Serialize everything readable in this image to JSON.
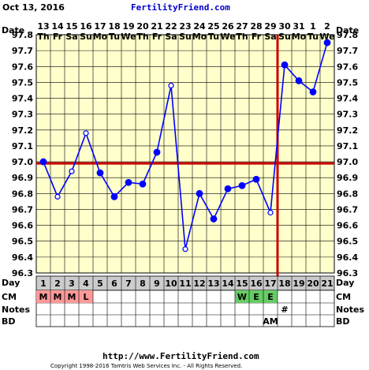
{
  "header": {
    "date_title": "Oct 13, 2016",
    "brand": "FertilityFriend.com"
  },
  "row_labels": {
    "date": "Date",
    "day": "Day",
    "cm": "CM",
    "notes": "Notes",
    "bd": "BD"
  },
  "footer": {
    "url": "http://www.FertilityFriend.com",
    "copyright": "Copyright 1998-2016 Tamtris Web Services Inc. - All Rights Reserved."
  },
  "colors": {
    "background": "#ffffcc",
    "grid": "#000000",
    "series": "#0000ff",
    "coverline": "#cc0000",
    "ovulation_line": "#cc0000",
    "day_row_bg": "#cccccc",
    "cm_m": "#ff9999",
    "cm_egg": "#66cc66"
  },
  "chart_data": {
    "type": "line",
    "x_dates": [
      "13",
      "14",
      "15",
      "16",
      "17",
      "18",
      "19",
      "20",
      "21",
      "22",
      "23",
      "24",
      "25",
      "26",
      "27",
      "28",
      "29",
      "30",
      "31",
      "1",
      "2"
    ],
    "x_weekdays": [
      "Th",
      "Fr",
      "Sa",
      "Su",
      "Mo",
      "Tu",
      "We",
      "Th",
      "Fr",
      "Sa",
      "Su",
      "Mo",
      "Tu",
      "We",
      "Th",
      "Fr",
      "Sa",
      "Su",
      "Mo",
      "Tu",
      "We"
    ],
    "cycle_days": [
      "1",
      "2",
      "3",
      "4",
      "5",
      "6",
      "7",
      "8",
      "9",
      "10",
      "11",
      "12",
      "13",
      "14",
      "15",
      "16",
      "17",
      "18",
      "19",
      "20",
      "21"
    ],
    "y_ticks": [
      "97.8",
      "97.7",
      "97.6",
      "97.5",
      "97.4",
      "97.3",
      "97.2",
      "97.1",
      "97.0",
      "96.9",
      "96.8",
      "96.7",
      "96.6",
      "96.5",
      "96.4",
      "96.3"
    ],
    "ylim": [
      96.3,
      97.8
    ],
    "grid": true,
    "series": [
      {
        "values": [
          97.0,
          96.78,
          96.94,
          97.18,
          96.93,
          96.78,
          96.87,
          96.86,
          97.06,
          97.48,
          96.45,
          96.8,
          96.64,
          96.83,
          96.85,
          96.89,
          96.68,
          97.61,
          97.51,
          97.44,
          97.75
        ],
        "open_points": [
          2,
          3,
          4,
          10,
          11,
          17
        ]
      }
    ],
    "coverline": 96.99,
    "ovulation_day": "17",
    "cm_row": [
      "M",
      "M",
      "M",
      "L",
      "",
      "",
      "",
      "",
      "",
      "",
      "",
      "",
      "",
      "",
      "W",
      "E",
      "E",
      "",
      "",
      "",
      ""
    ],
    "notes_row": [
      "",
      "",
      "",
      "",
      "",
      "",
      "",
      "",
      "",
      "",
      "",
      "",
      "",
      "",
      "",
      "",
      "",
      "#",
      "",
      "",
      ""
    ],
    "bd_row": [
      "",
      "",
      "",
      "",
      "",
      "",
      "",
      "",
      "",
      "",
      "",
      "",
      "",
      "",
      "",
      "",
      "AM",
      "",
      "",
      "",
      ""
    ]
  }
}
